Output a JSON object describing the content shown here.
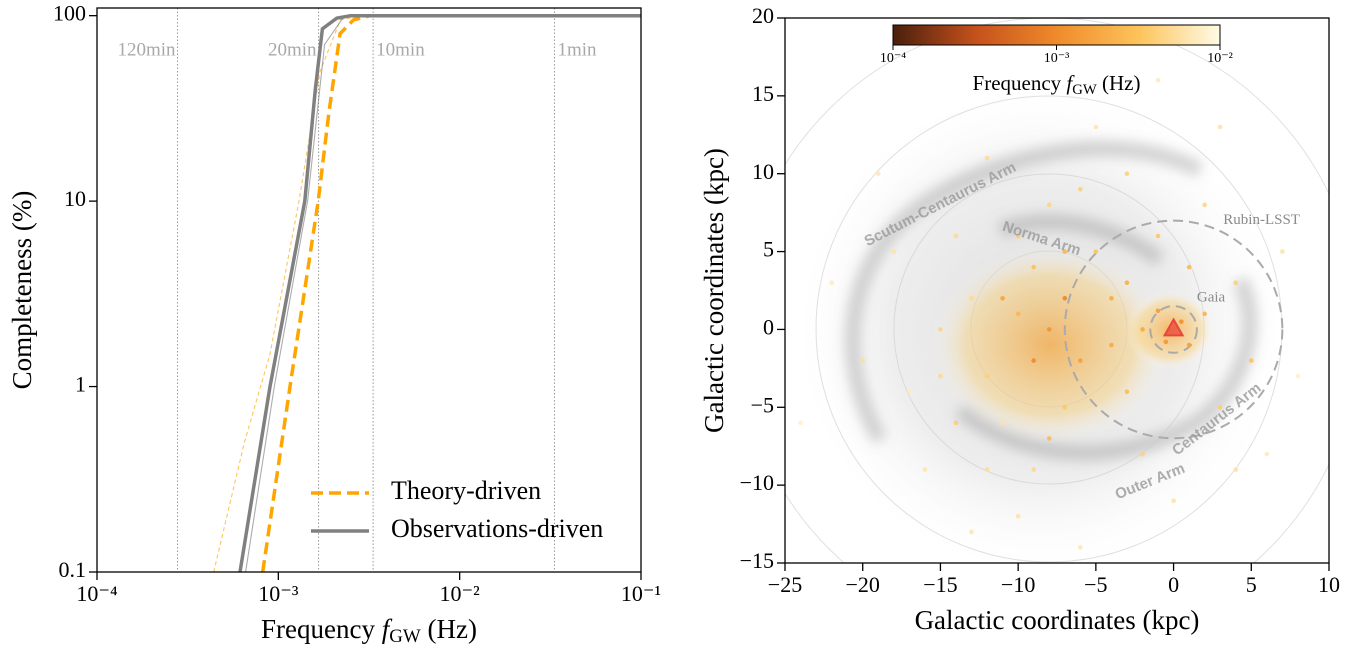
{
  "chart_data": [
    {
      "type": "line",
      "xlabel": "Frequency fGW (Hz)",
      "ylabel": "Completeness (%)",
      "xlim": [
        0.0001,
        0.1
      ],
      "ylim": [
        0.1,
        110
      ],
      "xlog": true,
      "ylog": true,
      "xticks": [
        {
          "value": 0.0001,
          "label": "10⁻⁴"
        },
        {
          "value": 0.001,
          "label": "10⁻³"
        },
        {
          "value": 0.01,
          "label": "10⁻²"
        },
        {
          "value": 0.1,
          "label": "10⁻¹"
        }
      ],
      "yticks": [
        0.1,
        1,
        10,
        100
      ],
      "annotations": [
        {
          "text": "120min",
          "x": 0.000278
        },
        {
          "text": "20min",
          "x": 0.001667
        },
        {
          "text": "10min",
          "x": 0.003333
        },
        {
          "text": "1min",
          "x": 0.03333
        }
      ],
      "legend": "lower right",
      "series": [
        {
          "name": "Theory-driven",
          "color": "#ffa500",
          "linestyle": "dashed",
          "x": [
            0.00082,
            0.00116,
            0.00166,
            0.0019,
            0.00219,
            0.0026,
            0.0032,
            0.1
          ],
          "values": [
            0.1,
            1,
            10,
            30,
            80,
            95,
            100,
            100
          ]
        },
        {
          "name": "Observations-driven",
          "color": "#808080",
          "linestyle": "solid",
          "x": [
            0.000615,
            0.0009,
            0.0014,
            0.0016,
            0.00175,
            0.0021,
            0.0025,
            0.1
          ],
          "values": [
            0.1,
            1,
            10,
            40,
            85,
            97,
            100,
            100
          ]
        },
        {
          "color": "#ffa500",
          "linestyle": "dashed",
          "x": [
            0.00044,
            0.00065,
            0.0009,
            0.0013,
            0.0017,
            0.0022,
            0.003,
            0.1
          ],
          "values": [
            0.1,
            0.5,
            1.5,
            10,
            50,
            95,
            100,
            100
          ]
        },
        {
          "color": "#808080",
          "linestyle": "solid",
          "x": [
            0.00066,
            0.00095,
            0.00145,
            0.0018,
            0.0023,
            0.1
          ],
          "values": [
            0.1,
            1,
            10,
            70,
            99,
            100
          ]
        }
      ]
    },
    {
      "type": "scatter",
      "xlabel": "Galactic coordinates (kpc)",
      "ylabel": "Galactic coordinates (kpc)",
      "xlim": [
        -25,
        10
      ],
      "ylim": [
        -15,
        20
      ],
      "xticks": [
        {
          "value": -25,
          "label": "−25"
        },
        {
          "value": -20,
          "label": "−20"
        },
        {
          "value": -15,
          "label": "−15"
        },
        {
          "value": -10,
          "label": "−10"
        },
        {
          "value": -5,
          "label": "−5"
        },
        0,
        5,
        10
      ],
      "yticks": [
        {
          "value": -15,
          "label": "−15"
        },
        {
          "value": -10,
          "label": "−10"
        },
        {
          "value": -5,
          "label": "−5"
        },
        0,
        5,
        10,
        15,
        20
      ],
      "colorbar": {
        "label": "Frequency fGW (Hz)",
        "lim": [
          0.0001,
          0.01
        ],
        "ticks": [
          {
            "value": 0.0001,
            "label": "10⁻⁴"
          },
          {
            "value": 0.001,
            "label": "10⁻³"
          },
          {
            "value": 0.01,
            "label": "10⁻²"
          }
        ],
        "colors": [
          "#4a1f0c",
          "#c4501c",
          "#f08a2a",
          "#fdc35a",
          "#fffbe6"
        ]
      },
      "regions": [
        {
          "label": "Rubin-LSST",
          "radius": 7
        },
        {
          "label": "Gaia",
          "radius": 1.5
        }
      ],
      "arm_labels": [
        "Scutum-Centaurus Arm",
        "Norma Arm",
        "Centaurus Arm",
        "Outer Arm"
      ],
      "marker": {
        "x": 0,
        "y": 0,
        "color": "#e8473a"
      },
      "x": [
        -8,
        -10,
        -6,
        -12,
        -4,
        -9,
        -7,
        -13,
        -11,
        -3,
        -5,
        -15,
        -2,
        0.5,
        -0.5,
        1,
        -1,
        2,
        -8,
        -14,
        -6,
        -17,
        -9,
        -2,
        3,
        4,
        -1,
        -18,
        -20,
        -5,
        -12,
        0,
        6,
        7,
        -10,
        -16,
        -3,
        2,
        5,
        -7,
        -9,
        -11,
        -4,
        -8,
        -14,
        -22,
        8,
        -19,
        -1,
        -6,
        3,
        -13,
        -7,
        -3,
        1,
        -10,
        -15,
        -12,
        4,
        -24
      ],
      "y": [
        0,
        1,
        -2,
        -3,
        2,
        4,
        -5,
        2,
        -6,
        -4,
        5,
        0,
        0,
        0.5,
        -0.8,
        -1,
        1.2,
        1,
        8,
        6,
        9,
        -4,
        -9,
        -8,
        -5,
        3,
        6,
        5,
        -2,
        13,
        11,
        -11,
        -8,
        5,
        -12,
        -9,
        10,
        8,
        -2,
        2,
        -2,
        2,
        -1,
        -7,
        -6,
        3,
        -3,
        10,
        16,
        -14,
        13,
        -13,
        5,
        3,
        4,
        6,
        -3,
        -9,
        -9,
        -6
      ],
      "frequency": [
        0.0012,
        0.0025,
        0.0015,
        0.004,
        0.002,
        0.003,
        0.0035,
        0.005,
        0.006,
        0.0028,
        0.0032,
        0.0045,
        0.0018,
        0.0011,
        0.0013,
        0.0016,
        0.0014,
        0.0022,
        0.0045,
        0.005,
        0.004,
        0.007,
        0.0048,
        0.0042,
        0.0038,
        0.004,
        0.0035,
        0.006,
        0.0055,
        0.0065,
        0.005,
        0.006,
        0.007,
        0.006,
        0.0058,
        0.0062,
        0.0041,
        0.0046,
        0.0031,
        0.0009,
        0.001,
        0.0017,
        0.0019,
        0.0027,
        0.0039,
        0.007,
        0.008,
        0.0068,
        0.007,
        0.0066,
        0.006,
        0.0064,
        0.0024,
        0.0021,
        0.0026,
        0.0037,
        0.0049,
        0.0052,
        0.0057,
        0.008
      ]
    }
  ]
}
